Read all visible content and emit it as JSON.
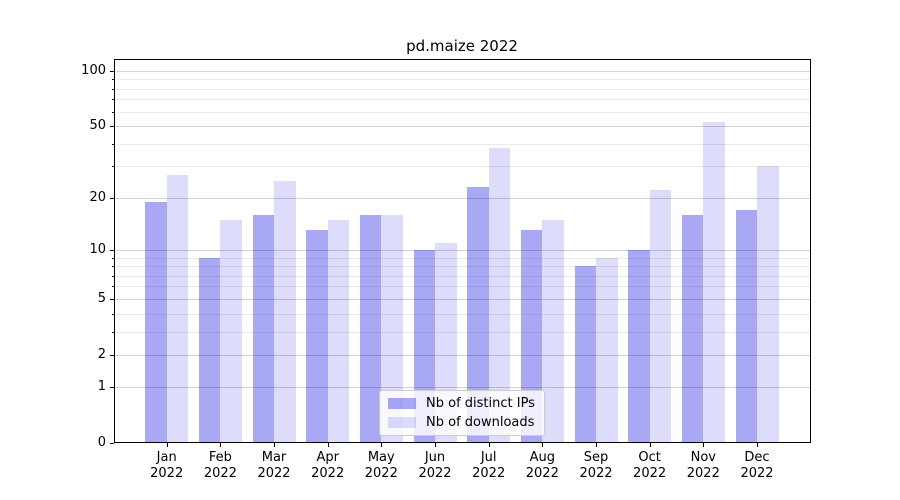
{
  "title": "pd.maize 2022",
  "chart_data": {
    "type": "bar",
    "title": "pd.maize 2022",
    "categories": [
      "Jan",
      "Feb",
      "Mar",
      "Apr",
      "May",
      "Jun",
      "Jul",
      "Aug",
      "Sep",
      "Oct",
      "Nov",
      "Dec"
    ],
    "year_label": "2022",
    "series": [
      {
        "name": "Nb of distinct IPs",
        "values": [
          19,
          9,
          16,
          13,
          16,
          10,
          23,
          13,
          8,
          10,
          16,
          17
        ]
      },
      {
        "name": "Nb of downloads",
        "values": [
          27,
          15,
          25,
          15,
          16,
          11,
          38,
          15,
          9,
          22,
          53,
          30
        ]
      }
    ],
    "yscale": "log1p",
    "ylim": [
      0,
      115
    ],
    "ytick_values": [
      100,
      50,
      20,
      10,
      5,
      2,
      1,
      0
    ],
    "minor_ytick_values": [
      90,
      80,
      70,
      60,
      40,
      30,
      9,
      8,
      7,
      6,
      4,
      3
    ],
    "grid": true,
    "legend_position": "lower center"
  },
  "colors": {
    "distinct_ips_bar": "rgba(0,0,222,0.34)",
    "downloads_bar": "rgba(0,0,222,0.135)",
    "distinct_ips_hex": "#a9a9f4",
    "downloads_hex": "#dcdcfa",
    "major_grid": "#d2d2d2",
    "minor_grid": "#eaeaea",
    "axis": "#000000"
  }
}
